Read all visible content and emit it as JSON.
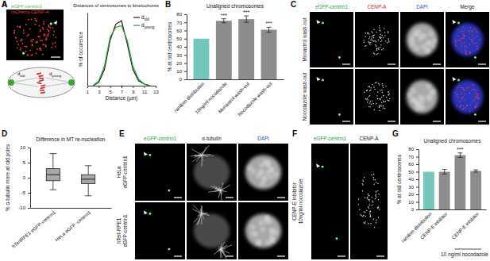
{
  "chart_data": [
    {
      "panel": "A",
      "type": "line",
      "title": "Distances of centrosomes to kinetochores",
      "x_label": "Distance (µm)",
      "y_label": "% of occurence",
      "x": [
        2,
        3,
        4,
        5,
        6,
        7,
        8,
        9,
        10,
        11,
        12
      ],
      "series": [
        {
          "name": "dold",
          "color": "#1a1a1a",
          "values": [
            0,
            2,
            10,
            28,
            38,
            40,
            26,
            10,
            3,
            1,
            0
          ]
        },
        {
          "name": "dyoung",
          "color": "#2e9e3e",
          "values": [
            0,
            3,
            12,
            30,
            36,
            37,
            28,
            12,
            4,
            1,
            0
          ]
        }
      ],
      "xlim": [
        1,
        13
      ],
      "xticks": [
        1,
        3,
        5,
        7,
        9,
        11,
        13
      ],
      "ylim": [
        0,
        45
      ],
      "tick_labels": "x",
      "legend": "top-right"
    },
    {
      "panel": "B",
      "type": "bar",
      "title": "Unaligned chromosomes",
      "y_label": "% at old centrosomes",
      "categories": [
        "random distribution",
        "10ng/ml nocodazole",
        "Monastrol wash-out",
        "Nocodazole wash-out"
      ],
      "values": [
        50,
        72,
        74,
        61
      ],
      "errors": [
        null,
        2.5,
        4,
        3
      ],
      "significance": [
        null,
        "***",
        "***",
        "***"
      ],
      "colors": [
        "#74c6bb",
        "#8c8c8c",
        "#8c8c8c",
        "#8c8c8c"
      ],
      "ylim": [
        0,
        80
      ],
      "yticks": [
        0,
        10,
        20,
        30,
        40,
        50,
        60,
        70,
        80
      ]
    },
    {
      "panel": "D",
      "type": "box",
      "title": "Difference in MT re-nucleation",
      "y_label": "% α-tubulin more at old poles",
      "categories": [
        "hTertRPE1 eGFP-centrin1",
        "HeLa eGFP -centrin1"
      ],
      "boxes": [
        {
          "min": -4,
          "q1": -1,
          "median": 1,
          "q3": 3,
          "max": 8
        },
        {
          "min": -6,
          "q1": -2,
          "median": -0.5,
          "q3": 1,
          "max": 4
        }
      ],
      "color": "#a6a6a6",
      "ylim": [
        -10,
        10
      ],
      "yticks": [
        -10,
        -5,
        0,
        5,
        10
      ]
    },
    {
      "panel": "G",
      "type": "bar",
      "title": "Unaligned chromosomes",
      "y_label": "% at old centrosomes",
      "categories": [
        "random distribution",
        "CENP-E inhibitor",
        null,
        "CENP-E inhibitor"
      ],
      "values": [
        50,
        50,
        72,
        51
      ],
      "errors": [
        null,
        3,
        3,
        1.5
      ],
      "significance": [
        null,
        null,
        "***",
        null
      ],
      "annotations": [
        {
          "text": "10 ng/ml nocodazole",
          "span": [
            2,
            3
          ]
        }
      ],
      "colors": [
        "#74c6bb",
        "#8c8c8c",
        "#8c8c8c",
        "#8c8c8c"
      ],
      "ylim": [
        0,
        80
      ],
      "yticks": [
        0,
        10,
        20,
        30,
        40,
        50,
        60,
        70,
        80
      ]
    }
  ],
  "image_panels": [
    {
      "panel": "A",
      "channels": [
        "eGFP-centrin1",
        "mCherry-CENP-A"
      ],
      "channel_colors": [
        "#3cc83c",
        "#ff3030"
      ],
      "diagram_labels": [
        "dold",
        "dyoung"
      ]
    },
    {
      "panel": "C",
      "columns": [
        "eGFP-centrin1",
        "CENP-A",
        "DAPI",
        "Merge"
      ],
      "column_colors": [
        "#2e9e3e",
        "#d42020",
        "#2a50c8",
        "#111111"
      ],
      "rows": [
        [
          "Monastrol wash-out"
        ],
        [
          "Nocodazole wash-out"
        ]
      ]
    },
    {
      "panel": "E",
      "columns": [
        "eGFP-centrin1",
        "α-tubulin",
        "DAPI"
      ],
      "column_colors": [
        "#2e9e3e",
        "#111111",
        "#2a50c8"
      ],
      "rows": [
        [
          "HeLa",
          "eGFP-centrin1"
        ],
        [
          "hTert-RPE1",
          "eGFP-centrin1"
        ]
      ]
    },
    {
      "panel": "F",
      "columns": [
        "eGFP-centrin1",
        "CENP-A"
      ],
      "column_colors": [
        "#2e9e3e",
        "#111111"
      ],
      "rows": [
        [
          "CENP-E inhibitor",
          "10ng/ml nocodazole"
        ]
      ]
    }
  ]
}
